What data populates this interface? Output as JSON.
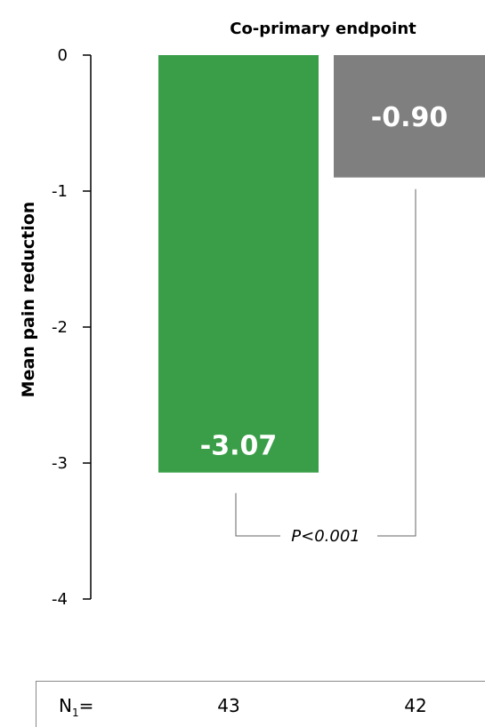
{
  "chart_data": {
    "type": "bar",
    "title": "Co-primary endpoint",
    "ylabel": "Mean pain reduction",
    "xlabel": "",
    "ylim": [
      -4,
      0
    ],
    "yticks": [
      0,
      -1,
      -2,
      -3,
      -4
    ],
    "ytick_labels": [
      "0",
      "-1",
      "-2",
      "-3",
      "-4"
    ],
    "grid": false,
    "categories": [
      "",
      ""
    ],
    "values": [
      -3.07,
      -0.9
    ],
    "value_labels": [
      "-3.07",
      "-0.90"
    ],
    "colors": [
      "#3a9e48",
      "#7f7f7f"
    ],
    "annotations": [
      {
        "type": "significance-bracket",
        "text": "P<0.001",
        "between": [
          0,
          1
        ]
      }
    ],
    "n_table": {
      "label": "N",
      "subscript": "1",
      "suffix": "=",
      "values": [
        "43",
        "42"
      ]
    }
  }
}
